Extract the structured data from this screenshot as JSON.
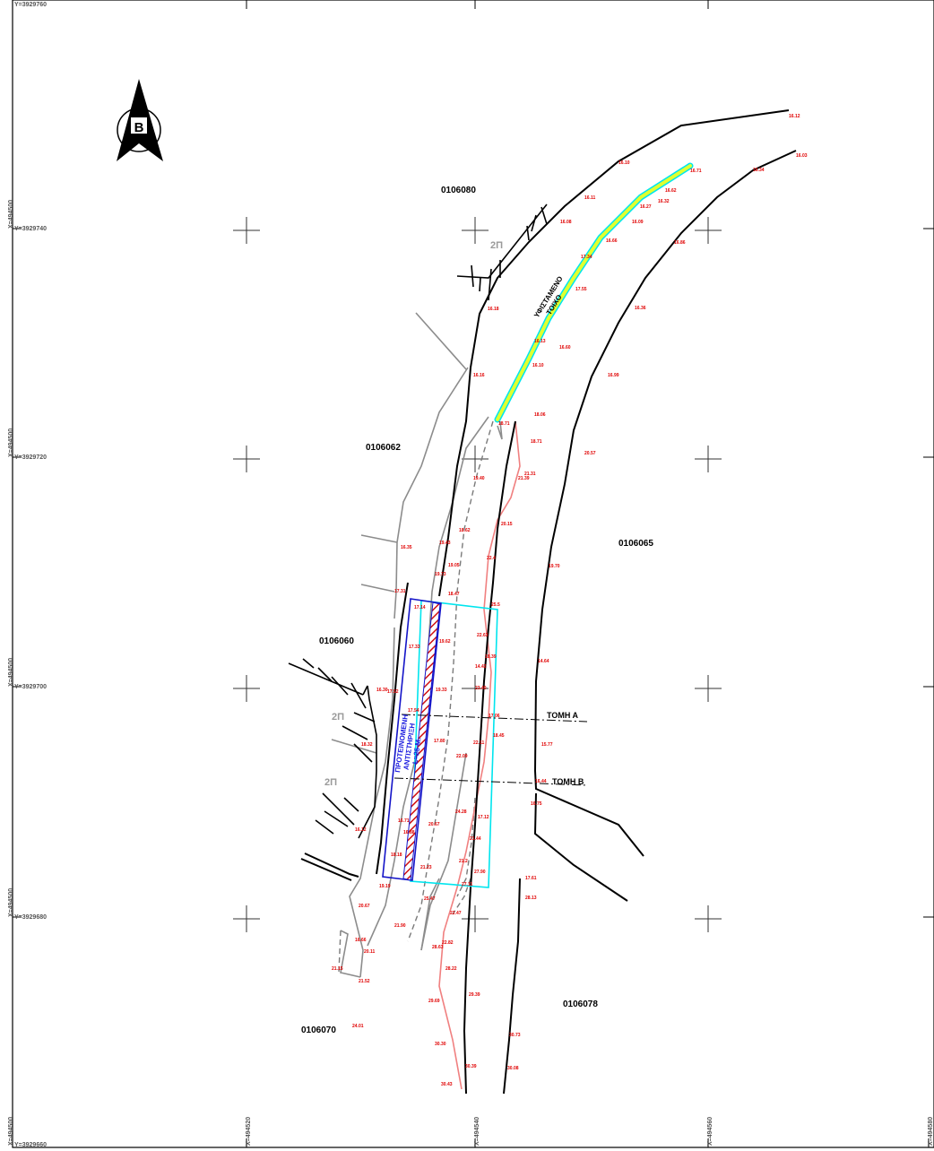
{
  "colors": {
    "road_edge": "#000000",
    "property": "#8c8c8c",
    "elevation": "#e00000",
    "stream": "#f08080",
    "wall_fill": "#e0ff30",
    "wall_outline": "#00e5ee",
    "proposed_outline": "#1414c8",
    "proposed_hatch": "#d01010"
  },
  "icons": {
    "north_arrow": "north-arrow-icon"
  },
  "north_arrow": {
    "letter": "B"
  },
  "coordinates": {
    "top": "Y=3929760",
    "y1": "Y=3929740",
    "y2": "Y=3929720",
    "y3": "Y=3929700",
    "y4": "Y=3929680",
    "bottom": "Y=3929660",
    "x_left": [
      "X=494500",
      "X=494500",
      "X=494500",
      "X=494500",
      "X=494500"
    ],
    "x_bottom": [
      "X=494520",
      "X=494540",
      "X=494560",
      "X=494580"
    ]
  },
  "parcels": {
    "p0106080": "0106080",
    "p0106062": "0106062",
    "p0106065": "0106065",
    "p0106060": "0106060",
    "p0106070": "0106070",
    "p0106078": "0106078"
  },
  "labels": {
    "two_p_1": "2Π",
    "two_p_2": "2Π",
    "two_p_3": "2Π",
    "section_a": "ΤΟΜΗ  Α",
    "section_b": "ΤΟΜΗ  Β",
    "existing_wall_line1": "ΥΦΙΣΤΑΜΕΝΟ",
    "existing_wall_line2": "ΤΟΙΧΟ",
    "proposed_line1": "ΠΡΟΤΕΙΝΟΜΕΝΗ",
    "proposed_line2": "ΑΝΤΙΣΤΗΡΙΞΗ",
    "proposed_line3": "L=25 M."
  },
  "elevations": [
    "16.12",
    "16.03",
    "16.10",
    "16.71",
    "16.11",
    "16.62",
    "16.27",
    "16.32",
    "16.08",
    "16.34",
    "16.09",
    "16.66",
    "16.86",
    "17.34",
    "17.55",
    "16.18",
    "16.36",
    "16.13",
    "16.10",
    "16.60",
    "16.16",
    "16.99",
    "18.06",
    "18.71",
    "20.57",
    "19.40",
    "21.31",
    "21.39",
    "20.15",
    "18.71",
    "18.62",
    "19.43",
    "19.05",
    "19.70",
    "22.4",
    "19.73",
    "17.14",
    "17.31",
    "18.47",
    "17.33",
    "19.62",
    "19.33",
    "22.63",
    "14.64",
    "14.42",
    "17.52",
    "17.54",
    "18.39",
    "18.32",
    "18.45",
    "17.80",
    "15.77",
    "22.11",
    "22.09",
    "16.44",
    "16.75",
    "24.28",
    "17.12",
    "17.06",
    "16.71",
    "20.67",
    "21.44",
    "16.12",
    "18.18",
    "16.88",
    "21.23",
    "19.19",
    "20.67",
    "25.47",
    "22.47",
    "21.90",
    "22.82",
    "28.63",
    "28.22",
    "20.11",
    "21.15",
    "21.52",
    "16.66",
    "29.69",
    "29.39",
    "24.01",
    "30.30",
    "30.73",
    "30.39",
    "30.08",
    "30.43",
    "21.2",
    "25.5",
    "23.40",
    "27.11",
    "27.90",
    "28.13",
    "16.35",
    "17.61",
    "16.30"
  ]
}
